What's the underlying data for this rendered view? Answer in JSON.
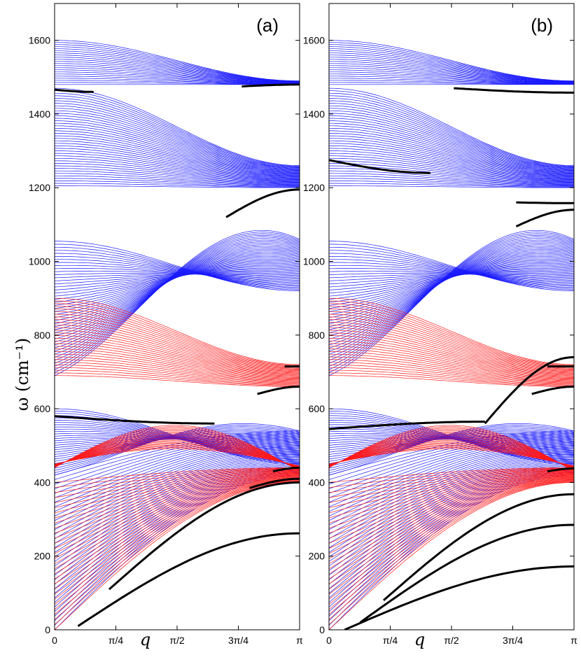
{
  "figure": {
    "ylabel": "ω  (cm⁻¹)",
    "xlabel": "q",
    "colors": {
      "band_a": "#1a1aff",
      "band_b": "#ff1a1a",
      "localized": "#000000"
    }
  },
  "chart_data": [
    {
      "panel_label": "(a)",
      "type": "line",
      "ylim": [
        0,
        1700
      ],
      "xlim": [
        0,
        3.14159
      ],
      "y_ticks": [
        0,
        200,
        400,
        600,
        800,
        1000,
        1200,
        1400,
        1600
      ],
      "x_ticks": [
        "0",
        "π/4",
        "π/2",
        "3π/4",
        "π"
      ],
      "grid": false,
      "blue_bands": [
        {
          "kind": "optical",
          "y0_lo": 1480,
          "y0_hi": 1600,
          "yend_lo": 1480,
          "yend_hi": 1490,
          "n": 22
        },
        {
          "kind": "optical",
          "y0_lo": 1205,
          "y0_hi": 1470,
          "yend_lo": 1200,
          "yend_hi": 1260,
          "n": 40
        },
        {
          "kind": "crossing",
          "y0_lo": 690,
          "y0_hi": 1055,
          "ymid": 1080,
          "yend_lo": 920,
          "yend_hi": 1060,
          "n": 45
        },
        {
          "kind": "crossing",
          "y0_lo": 420,
          "y0_hi": 600,
          "ymid": 630,
          "yend_lo": 450,
          "yend_hi": 540,
          "n": 30
        },
        {
          "kind": "acoustic",
          "y0_lo": 0,
          "y0_hi": 420,
          "yend_lo": 420,
          "yend_hi": 540,
          "n": 35
        }
      ],
      "red_bands": [
        {
          "kind": "optical",
          "y0_lo": 690,
          "y0_hi": 900,
          "yend_lo": 660,
          "yend_hi": 720,
          "n": 30
        },
        {
          "kind": "mid",
          "y0_lo": 440,
          "y0_hi": 450,
          "ymid": 560,
          "yend_lo": 430,
          "yend_hi": 445,
          "n": 20
        },
        {
          "kind": "acoustic",
          "y0_lo": 0,
          "y0_hi": 400,
          "yend_lo": 400,
          "yend_hi": 440,
          "n": 30
        }
      ],
      "localized_modes": [
        {
          "x": [
            0.0,
            0.5
          ],
          "y": [
            1466,
            1460
          ]
        },
        {
          "x": [
            2.4,
            3.14
          ],
          "y": [
            1475,
            1480
          ]
        },
        {
          "x": [
            2.2,
            3.14
          ],
          "y": [
            1120,
            1195
          ]
        },
        {
          "x": [
            0.0,
            2.05
          ],
          "y": [
            580,
            560
          ]
        },
        {
          "x": [
            2.95,
            3.14
          ],
          "y": [
            715,
            715
          ]
        },
        {
          "x": [
            2.6,
            3.14
          ],
          "y": [
            640,
            660
          ]
        },
        {
          "x": [
            0.7,
            3.14
          ],
          "y": [
            110,
            400
          ]
        },
        {
          "x": [
            0.3,
            3.14
          ],
          "y": [
            10,
            262
          ]
        },
        {
          "x": [
            2.5,
            3.14
          ],
          "y": [
            385,
            410
          ]
        },
        {
          "x": [
            2.8,
            3.14
          ],
          "y": [
            430,
            440
          ]
        }
      ]
    },
    {
      "panel_label": "(b)",
      "type": "line",
      "ylim": [
        0,
        1700
      ],
      "xlim": [
        0,
        3.14159
      ],
      "y_ticks": [
        0,
        200,
        400,
        600,
        800,
        1000,
        1200,
        1400,
        1600
      ],
      "x_ticks": [
        "0",
        "π/4",
        "π/2",
        "3π/4",
        "π"
      ],
      "grid": false,
      "blue_bands": [
        {
          "kind": "optical",
          "y0_lo": 1480,
          "y0_hi": 1600,
          "yend_lo": 1480,
          "yend_hi": 1490,
          "n": 22
        },
        {
          "kind": "optical",
          "y0_lo": 1205,
          "y0_hi": 1470,
          "yend_lo": 1200,
          "yend_hi": 1260,
          "n": 40
        },
        {
          "kind": "crossing",
          "y0_lo": 690,
          "y0_hi": 1055,
          "ymid": 1080,
          "yend_lo": 920,
          "yend_hi": 1060,
          "n": 45
        },
        {
          "kind": "crossing",
          "y0_lo": 420,
          "y0_hi": 600,
          "ymid": 630,
          "yend_lo": 450,
          "yend_hi": 540,
          "n": 30
        },
        {
          "kind": "acoustic",
          "y0_lo": 0,
          "y0_hi": 420,
          "yend_lo": 420,
          "yend_hi": 540,
          "n": 35
        }
      ],
      "red_bands": [
        {
          "kind": "optical",
          "y0_lo": 690,
          "y0_hi": 900,
          "yend_lo": 660,
          "yend_hi": 720,
          "n": 30
        },
        {
          "kind": "mid",
          "y0_lo": 440,
          "y0_hi": 450,
          "ymid": 560,
          "yend_lo": 430,
          "yend_hi": 445,
          "n": 20
        },
        {
          "kind": "acoustic",
          "y0_lo": 0,
          "y0_hi": 400,
          "yend_lo": 400,
          "yend_hi": 440,
          "n": 30
        }
      ],
      "localized_modes": [
        {
          "x": [
            1.6,
            3.14
          ],
          "y": [
            1470,
            1458
          ]
        },
        {
          "x": [
            0.0,
            1.3
          ],
          "y": [
            1275,
            1240
          ]
        },
        {
          "x": [
            2.4,
            3.14
          ],
          "y": [
            1160,
            1158
          ]
        },
        {
          "x": [
            2.4,
            3.14
          ],
          "y": [
            1095,
            1140
          ]
        },
        {
          "x": [
            0.0,
            2.0
          ],
          "y": [
            545,
            565
          ]
        },
        {
          "x": [
            2.0,
            3.14
          ],
          "y": [
            560,
            740
          ]
        },
        {
          "x": [
            2.8,
            3.14
          ],
          "y": [
            715,
            715
          ]
        },
        {
          "x": [
            2.6,
            3.14
          ],
          "y": [
            640,
            660
          ]
        },
        {
          "x": [
            0.7,
            3.14
          ],
          "y": [
            80,
            368
          ]
        },
        {
          "x": [
            0.4,
            3.14
          ],
          "y": [
            20,
            285
          ]
        },
        {
          "x": [
            0.2,
            3.14
          ],
          "y": [
            0,
            172
          ]
        },
        {
          "x": [
            2.8,
            3.14
          ],
          "y": [
            430,
            438
          ]
        }
      ]
    }
  ]
}
